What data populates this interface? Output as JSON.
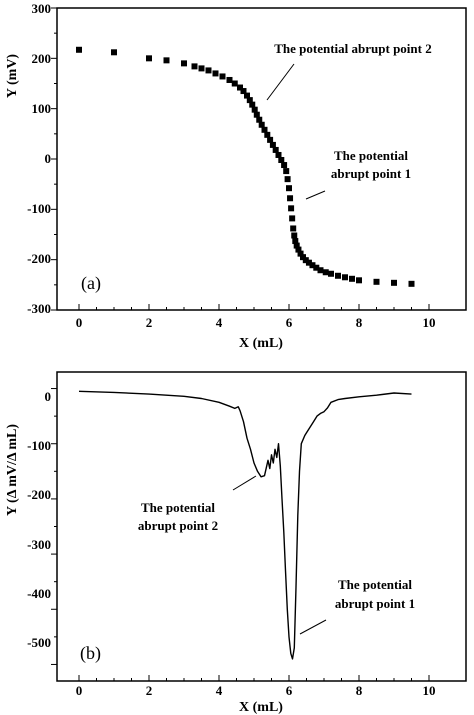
{
  "chart_data": [
    {
      "type": "scatter",
      "panel_label": "(a)",
      "xlabel": "X (mL)",
      "ylabel": "Y (mV)",
      "xlim": [
        -0.7,
        11
      ],
      "ylim": [
        -300,
        300
      ],
      "x_ticks": [
        "0",
        "2",
        "4",
        "6",
        "8",
        "10"
      ],
      "y_ticks": [
        "300",
        "200",
        "100",
        "0",
        "-100",
        "-200",
        "-300"
      ],
      "grid": false,
      "marker": "square",
      "series": [
        {
          "x": [
            0,
            1,
            2,
            2.5,
            3,
            3.3,
            3.5,
            3.7,
            3.9,
            4.1,
            4.3,
            4.45,
            4.6,
            4.7,
            4.8,
            4.88,
            4.95,
            5.02,
            5.08,
            5.15,
            5.22,
            5.3,
            5.38,
            5.46,
            5.54,
            5.62,
            5.7,
            5.78,
            5.86,
            5.92,
            5.96,
            6.0,
            6.03,
            6.06,
            6.09,
            6.12,
            6.15,
            6.18,
            6.22,
            6.27,
            6.33,
            6.4,
            6.48,
            6.57,
            6.67,
            6.78,
            6.9,
            7.05,
            7.2,
            7.4,
            7.6,
            7.8,
            8.0,
            8.5,
            9.0,
            9.5
          ],
          "y": [
            217,
            212,
            200,
            196,
            190,
            184,
            180,
            176,
            170,
            164,
            157,
            150,
            142,
            135,
            126,
            117,
            108,
            98,
            88,
            78,
            68,
            58,
            48,
            38,
            28,
            18,
            8,
            -2,
            -12,
            -24,
            -40,
            -58,
            -78,
            -98,
            -118,
            -138,
            -152,
            -163,
            -172,
            -180,
            -188,
            -195,
            -201,
            -206,
            -211,
            -216,
            -221,
            -225,
            -228,
            -232,
            -235,
            -238,
            -241,
            -244,
            -246,
            -248
          ]
        }
      ],
      "annotations": [
        {
          "lines": [
            "The potential abrupt point 2"
          ],
          "point": [
            5.2,
            105
          ]
        },
        {
          "lines": [
            "The potential",
            "abrupt point 1"
          ],
          "point": [
            6.1,
            -80
          ]
        }
      ]
    },
    {
      "type": "line",
      "panel_label": "(b)",
      "xlabel": "X (mL)",
      "ylabel": "Y (Δ mV/Δ mL)",
      "xlim": [
        -0.7,
        11
      ],
      "ylim": [
        -530,
        30
      ],
      "x_ticks": [
        "0",
        "2",
        "4",
        "6",
        "8",
        "10"
      ],
      "y_ticks": [
        "0",
        "-100",
        "-200",
        "-300",
        "-400",
        "-500"
      ],
      "grid": false,
      "series": [
        {
          "x": [
            0,
            1,
            2,
            3,
            3.5,
            4,
            4.3,
            4.45,
            4.55,
            4.6,
            4.7,
            4.8,
            4.9,
            5.0,
            5.1,
            5.2,
            5.3,
            5.4,
            5.45,
            5.5,
            5.55,
            5.6,
            5.65,
            5.7,
            5.75,
            5.8,
            5.85,
            5.9,
            5.95,
            6.0,
            6.05,
            6.1,
            6.15,
            6.2,
            6.25,
            6.3,
            6.35,
            6.45,
            6.5,
            6.6,
            6.7,
            6.8,
            6.9,
            7.0,
            7.1,
            7.2,
            7.4,
            7.6,
            8.0,
            8.5,
            9.0,
            9.5
          ],
          "y": [
            -5,
            -7,
            -10,
            -14,
            -18,
            -25,
            -32,
            -36,
            -33,
            -40,
            -60,
            -90,
            -110,
            -135,
            -150,
            -160,
            -158,
            -130,
            -145,
            -120,
            -135,
            -110,
            -125,
            -100,
            -140,
            -200,
            -260,
            -330,
            -400,
            -450,
            -480,
            -490,
            -470,
            -360,
            -230,
            -150,
            -100,
            -85,
            -80,
            -70,
            -60,
            -50,
            -45,
            -42,
            -35,
            -25,
            -20,
            -18,
            -15,
            -12,
            -8,
            -10
          ]
        }
      ],
      "annotations": [
        {
          "lines": [
            "The potential",
            "abrupt point 2"
          ],
          "point": [
            5.2,
            -160
          ]
        },
        {
          "lines": [
            "The potential",
            "abrupt point 1"
          ],
          "point": [
            6.15,
            -490
          ]
        }
      ]
    }
  ]
}
